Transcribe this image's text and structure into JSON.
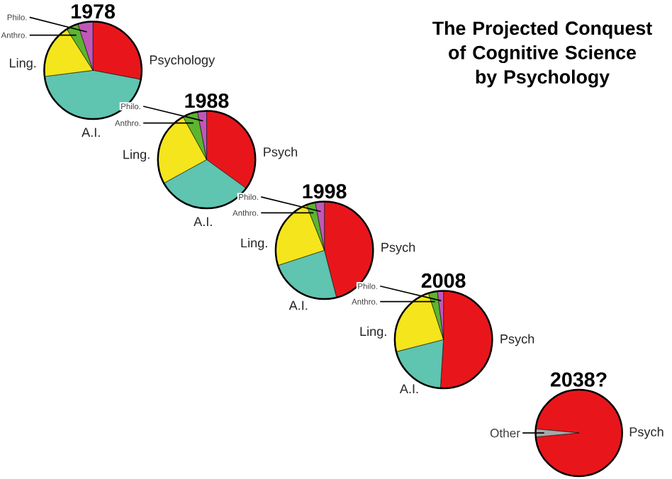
{
  "chart_data": [
    {
      "type": "pie",
      "title": "1978",
      "categories": [
        "Psychology",
        "A.I.",
        "Ling.",
        "Anthro.",
        "Philo."
      ],
      "values": [
        28,
        45,
        18,
        4,
        5
      ],
      "colors": [
        "#e8161b",
        "#5fc4b0",
        "#f5e51c",
        "#5db52f",
        "#c058b8"
      ]
    },
    {
      "type": "pie",
      "title": "1988",
      "categories": [
        "Psych",
        "A.I.",
        "Ling.",
        "Anthro.",
        "Philo."
      ],
      "values": [
        35,
        32,
        25,
        5,
        3
      ],
      "colors": [
        "#e8161b",
        "#5fc4b0",
        "#f5e51c",
        "#5db52f",
        "#c058b8"
      ]
    },
    {
      "type": "pie",
      "title": "1998",
      "categories": [
        "Psych",
        "A.I.",
        "Ling.",
        "Anthro.",
        "Philo."
      ],
      "values": [
        46,
        24,
        24,
        3,
        3
      ],
      "colors": [
        "#e8161b",
        "#5fc4b0",
        "#f5e51c",
        "#5db52f",
        "#c058b8"
      ]
    },
    {
      "type": "pie",
      "title": "2008",
      "categories": [
        "Psych",
        "A.I.",
        "Ling.",
        "Anthro.",
        "Philo."
      ],
      "values": [
        51,
        20,
        24,
        3,
        2
      ],
      "colors": [
        "#e8161b",
        "#5fc4b0",
        "#f5e51c",
        "#5db52f",
        "#c058b8"
      ]
    },
    {
      "type": "pie",
      "title": "2038?",
      "categories": [
        "Psych",
        "Other"
      ],
      "values": [
        97,
        3
      ],
      "colors": [
        "#e8161b",
        "#a8a8a8"
      ]
    },
    {
      "type": "other",
      "title": "The Projected Conquest of Cognitive Science by Psychology"
    }
  ]
}
